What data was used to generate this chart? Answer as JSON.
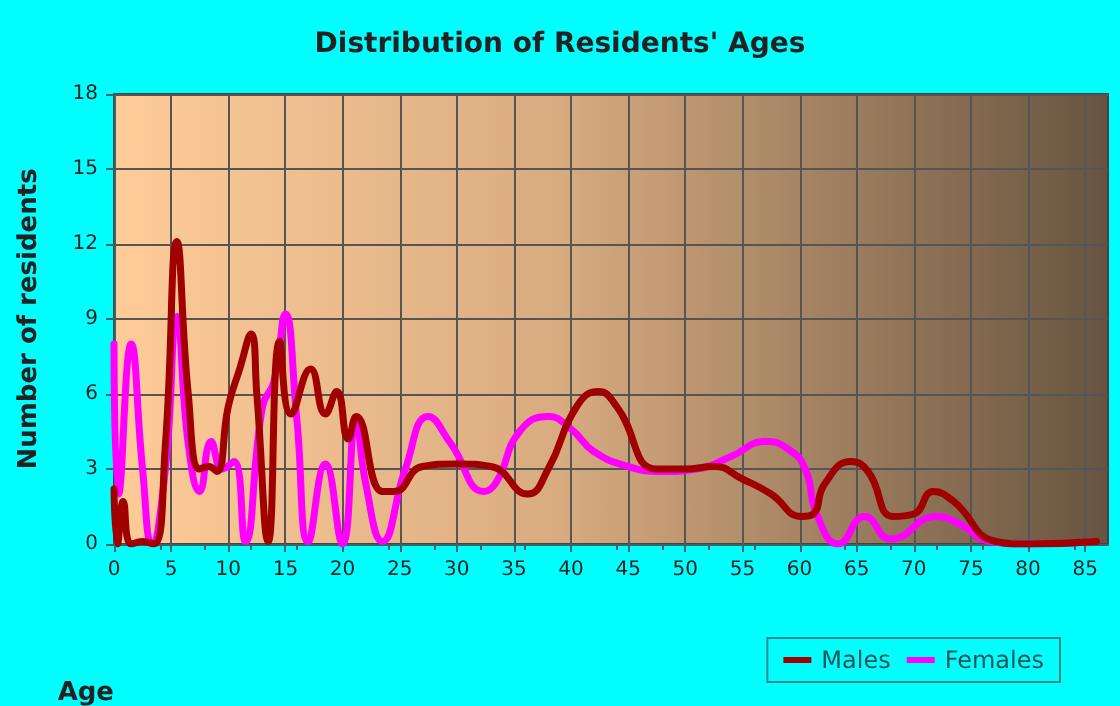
{
  "chart_data": {
    "type": "line",
    "title": "Distribution of Residents' Ages",
    "xlabel": "Age",
    "ylabel": "Number of residents",
    "xlim": [
      0,
      87
    ],
    "xticks": [
      0,
      5,
      10,
      15,
      20,
      25,
      30,
      35,
      40,
      45,
      50,
      55,
      60,
      65,
      70,
      75,
      80,
      85
    ],
    "ylim": [
      0,
      18
    ],
    "yticks": [
      0,
      3,
      6,
      9,
      12,
      15,
      18
    ],
    "grid": true,
    "legend": "bottom right",
    "marker": "none",
    "line_style": "solid",
    "series": [
      {
        "name": "Males",
        "color": "#a00000",
        "x": [
          0,
          0.3,
          0.8,
          1.5,
          2.5,
          3.5,
          4.5,
          5.5,
          6.5,
          7.5,
          8.3,
          9,
          10,
          11,
          12,
          12.5,
          13.5,
          14.5,
          15.5,
          17.2,
          18.5,
          19.5,
          20.5,
          21.2,
          23.5,
          24.5,
          27,
          30,
          33,
          36.2,
          38,
          40.5,
          42.4,
          44,
          47.5,
          50,
          52.5,
          55,
          57.5,
          60.2,
          61.2,
          62.2,
          64.5,
          66,
          68.2,
          70,
          71.7,
          73.5,
          77.2,
          80,
          86
        ],
        "values": [
          2.2,
          0,
          1.7,
          0,
          0.1,
          0,
          4,
          12.1,
          6,
          3,
          3.1,
          2.9,
          5.5,
          7,
          8.4,
          6,
          0.1,
          8.1,
          5.2,
          7,
          5.2,
          6.1,
          4.2,
          5.1,
          2.1,
          2.1,
          3.1,
          3.2,
          3.1,
          2,
          3,
          5.5,
          6.1,
          5.5,
          3,
          3,
          3.1,
          2.6,
          2,
          1.1,
          1.2,
          2.4,
          3.3,
          2.9,
          1.1,
          1.2,
          2.1,
          1.7,
          0.1,
          0,
          0.1
        ]
      },
      {
        "name": "Females",
        "color": "#ff00ff",
        "x": [
          0,
          0.4,
          1.5,
          2.5,
          3.3,
          4.5,
          5.5,
          6.5,
          7.5,
          8.5,
          9.5,
          10.5,
          11.5,
          13,
          14,
          15,
          16,
          17,
          18.5,
          20,
          21.2,
          22,
          23.5,
          25.5,
          27.5,
          29.5,
          32.4,
          33.5,
          35.5,
          38,
          40,
          42,
          45,
          48,
          51,
          54,
          57,
          59,
          60.5,
          61.5,
          63.4,
          65.7,
          68,
          72,
          74,
          76.7,
          80,
          86
        ],
        "values": [
          8,
          2,
          8,
          3,
          0,
          3,
          9.1,
          4,
          2.1,
          4.1,
          3,
          3.3,
          0.1,
          5.5,
          6.5,
          9.2,
          5,
          0.1,
          3.2,
          0,
          5,
          2.5,
          0.1,
          3,
          5.1,
          4,
          2.1,
          2.5,
          4.5,
          5.1,
          4.6,
          3.7,
          3.1,
          2.9,
          3,
          3.5,
          4.1,
          3.8,
          3,
          1.2,
          0,
          1.1,
          0.2,
          1.1,
          0.8,
          0.1,
          0,
          0.1
        ]
      }
    ]
  }
}
